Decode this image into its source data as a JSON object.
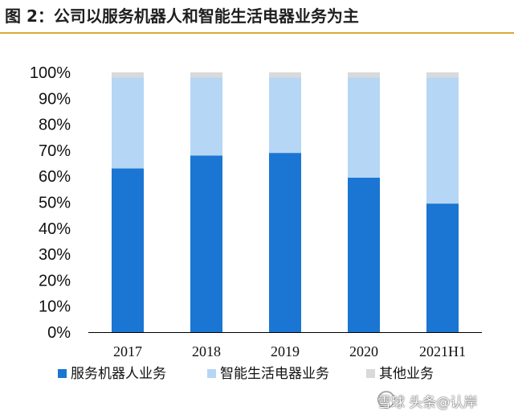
{
  "figure": {
    "title": "图 2：公司以服务机器人和智能生活电器业务为主"
  },
  "watermark": {
    "text": "雪球 头条@认岸"
  },
  "chart_data": {
    "type": "bar",
    "stacked": true,
    "categories": [
      "2017",
      "2018",
      "2019",
      "2020",
      "2021H1"
    ],
    "series": [
      {
        "name": "服务机器人业务",
        "color": "#1a76d2",
        "values": [
          63,
          68,
          69,
          59.5,
          49.5
        ]
      },
      {
        "name": "智能生活电器业务",
        "color": "#b5d6f5",
        "values": [
          35,
          30,
          29,
          38.5,
          48.5
        ]
      },
      {
        "name": "其他业务",
        "color": "#d9d9d9",
        "values": [
          2,
          2,
          2,
          2,
          2
        ]
      }
    ],
    "ylim": [
      0,
      100
    ],
    "yticks": [
      "0%",
      "10%",
      "20%",
      "30%",
      "40%",
      "50%",
      "60%",
      "70%",
      "80%",
      "90%",
      "100%"
    ],
    "legend_position": "bottom",
    "grid": false
  }
}
